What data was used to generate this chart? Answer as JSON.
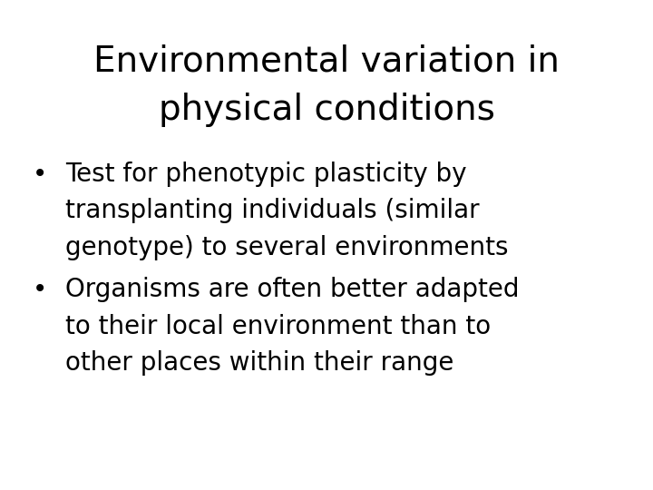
{
  "background_color": "#ffffff",
  "title_line1": "Environmental variation in",
  "title_line2": "physical conditions",
  "bullet1_line1": "Test for phenotypic plasticity by",
  "bullet1_line2": "transplanting individuals (similar",
  "bullet1_line3": "genotype) to several environments",
  "bullet2_line1": "Organisms are often better adapted",
  "bullet2_line2": "to their local environment than to",
  "bullet2_line3": "other places within their range",
  "text_color": "#000000",
  "title_fontsize": 28,
  "body_fontsize": 20,
  "font_family": "Comic Sans MS"
}
